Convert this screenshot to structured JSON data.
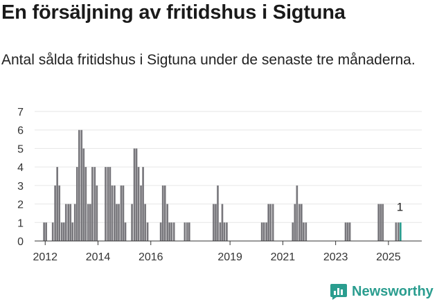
{
  "title": "En försäljning av fritidshus i Sigtuna",
  "subtitle": "Antal sålda fritidshus i Sigtuna under de senaste tre månaderna.",
  "brand": {
    "name": "Newsworthy",
    "icon": "newsworthy-logo-icon"
  },
  "colors": {
    "bar": "#77767b",
    "highlight": "#2a9d8f",
    "grid": "#e6e6e6",
    "axis": "#333333",
    "text": "#333333"
  },
  "chart_data": {
    "type": "bar",
    "title": "",
    "xlabel": "",
    "ylabel": "",
    "ylim": [
      0,
      7
    ],
    "yticks": [
      0,
      1,
      2,
      3,
      4,
      5,
      6,
      7
    ],
    "xticks": [
      {
        "label": "2012",
        "x": 2012.0
      },
      {
        "label": "2014",
        "x": 2014.0
      },
      {
        "label": "2016",
        "x": 2016.0
      },
      {
        "label": "2019",
        "x": 2019.0
      },
      {
        "label": "2021",
        "x": 2021.0
      },
      {
        "label": "2023",
        "x": 2023.0
      },
      {
        "label": "2025",
        "x": 2025.0
      }
    ],
    "xlim": [
      2011.6,
      2025.58
    ],
    "bar_width": 0.075,
    "grid": true,
    "highlight_label": "1",
    "bars": [
      {
        "x": 2011.96,
        "v": 1
      },
      {
        "x": 2012.04,
        "v": 1
      },
      {
        "x": 2012.29,
        "v": 1
      },
      {
        "x": 2012.38,
        "v": 3
      },
      {
        "x": 2012.46,
        "v": 4
      },
      {
        "x": 2012.54,
        "v": 3
      },
      {
        "x": 2012.63,
        "v": 1
      },
      {
        "x": 2012.71,
        "v": 1
      },
      {
        "x": 2012.79,
        "v": 2
      },
      {
        "x": 2012.88,
        "v": 2
      },
      {
        "x": 2012.96,
        "v": 2
      },
      {
        "x": 2013.04,
        "v": 1
      },
      {
        "x": 2013.13,
        "v": 2
      },
      {
        "x": 2013.21,
        "v": 4
      },
      {
        "x": 2013.29,
        "v": 6
      },
      {
        "x": 2013.38,
        "v": 6
      },
      {
        "x": 2013.46,
        "v": 5
      },
      {
        "x": 2013.54,
        "v": 4
      },
      {
        "x": 2013.63,
        "v": 2
      },
      {
        "x": 2013.71,
        "v": 2
      },
      {
        "x": 2013.79,
        "v": 4
      },
      {
        "x": 2013.88,
        "v": 4
      },
      {
        "x": 2013.96,
        "v": 3
      },
      {
        "x": 2014.29,
        "v": 4
      },
      {
        "x": 2014.38,
        "v": 4
      },
      {
        "x": 2014.46,
        "v": 4
      },
      {
        "x": 2014.54,
        "v": 3
      },
      {
        "x": 2014.63,
        "v": 3
      },
      {
        "x": 2014.71,
        "v": 2
      },
      {
        "x": 2014.79,
        "v": 2
      },
      {
        "x": 2014.88,
        "v": 3
      },
      {
        "x": 2014.96,
        "v": 3
      },
      {
        "x": 2015.04,
        "v": 1
      },
      {
        "x": 2015.29,
        "v": 2
      },
      {
        "x": 2015.38,
        "v": 5
      },
      {
        "x": 2015.46,
        "v": 5
      },
      {
        "x": 2015.54,
        "v": 4
      },
      {
        "x": 2015.63,
        "v": 3
      },
      {
        "x": 2015.71,
        "v": 4
      },
      {
        "x": 2015.79,
        "v": 2
      },
      {
        "x": 2015.88,
        "v": 1
      },
      {
        "x": 2016.38,
        "v": 1
      },
      {
        "x": 2016.46,
        "v": 3
      },
      {
        "x": 2016.54,
        "v": 3
      },
      {
        "x": 2016.63,
        "v": 2
      },
      {
        "x": 2016.71,
        "v": 1
      },
      {
        "x": 2016.79,
        "v": 1
      },
      {
        "x": 2016.88,
        "v": 1
      },
      {
        "x": 2017.29,
        "v": 1
      },
      {
        "x": 2017.38,
        "v": 1
      },
      {
        "x": 2017.46,
        "v": 1
      },
      {
        "x": 2018.38,
        "v": 2
      },
      {
        "x": 2018.46,
        "v": 2
      },
      {
        "x": 2018.54,
        "v": 3
      },
      {
        "x": 2018.63,
        "v": 1
      },
      {
        "x": 2018.71,
        "v": 2
      },
      {
        "x": 2018.79,
        "v": 1
      },
      {
        "x": 2018.88,
        "v": 1
      },
      {
        "x": 2020.21,
        "v": 1
      },
      {
        "x": 2020.29,
        "v": 1
      },
      {
        "x": 2020.38,
        "v": 1
      },
      {
        "x": 2020.46,
        "v": 2
      },
      {
        "x": 2020.54,
        "v": 2
      },
      {
        "x": 2020.63,
        "v": 2
      },
      {
        "x": 2021.38,
        "v": 1
      },
      {
        "x": 2021.46,
        "v": 2
      },
      {
        "x": 2021.54,
        "v": 3
      },
      {
        "x": 2021.63,
        "v": 2
      },
      {
        "x": 2021.71,
        "v": 2
      },
      {
        "x": 2021.79,
        "v": 1
      },
      {
        "x": 2021.88,
        "v": 1
      },
      {
        "x": 2023.38,
        "v": 1
      },
      {
        "x": 2023.46,
        "v": 1
      },
      {
        "x": 2023.54,
        "v": 1
      },
      {
        "x": 2024.63,
        "v": 2
      },
      {
        "x": 2024.71,
        "v": 2
      },
      {
        "x": 2024.79,
        "v": 2
      },
      {
        "x": 2025.29,
        "v": 1
      },
      {
        "x": 2025.38,
        "v": 1
      },
      {
        "x": 2025.46,
        "v": 1,
        "highlight": true
      }
    ]
  }
}
